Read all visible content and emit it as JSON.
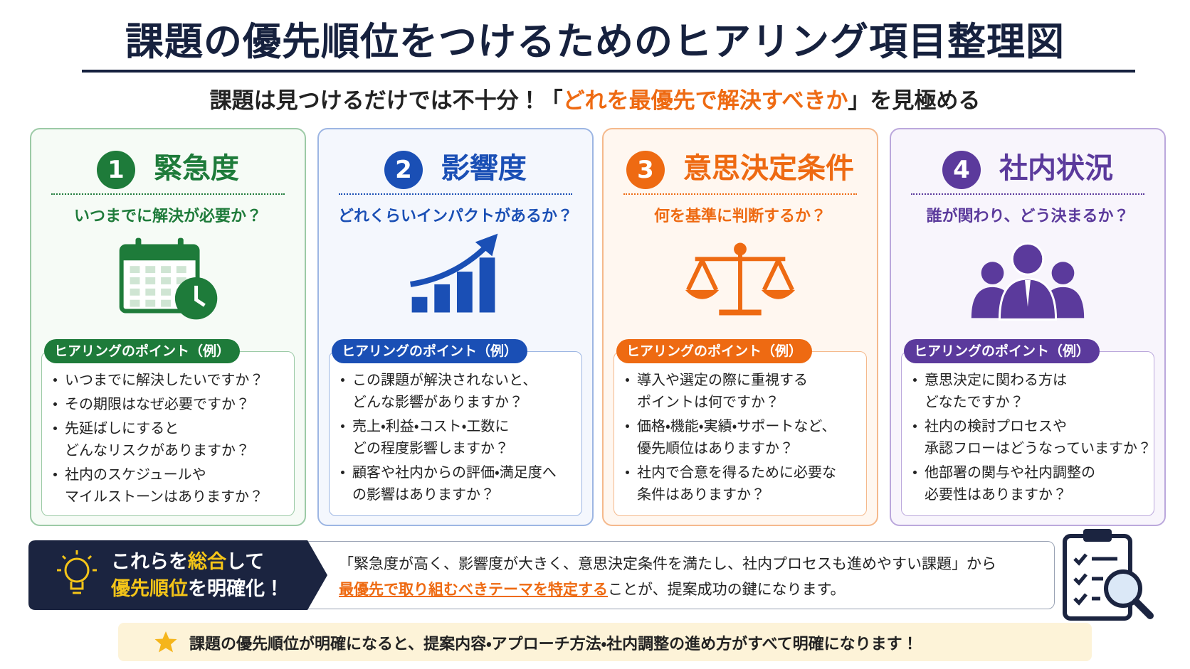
{
  "header": {
    "title": "課題の優先順位をつけるためのヒアリング項目整理図",
    "subtitle": [
      "課題は見つけるだけでは不十分！「",
      "どれを最優先で解決すべきか",
      "」を見極める"
    ]
  },
  "cards": [
    {
      "number": "1",
      "title": "緊急度",
      "question": "いつまでに解決が必要か？",
      "point_label": "ヒアリングのポイント（例）",
      "items": [
        [
          "いつまでに解決したいですか？"
        ],
        [
          "その期限はなぜ必要ですか？"
        ],
        [
          "先延ばしにすると",
          "どんなリスクがありますか？"
        ],
        [
          "社内のスケジュールや",
          "マイルストーンはありますか？"
        ]
      ]
    },
    {
      "number": "2",
      "title": "影響度",
      "question": "どれくらいインパクトがあるか？",
      "point_label": "ヒアリングのポイント（例）",
      "items": [
        [
          "この課題が解決されないと、",
          "どんな影響がありますか？"
        ],
        [
          "売上・利益・コスト・工数に",
          "どの程度影響しますか？"
        ],
        [
          "顧客や社内からの評価・満足度へ",
          "の影響はありますか？"
        ]
      ]
    },
    {
      "number": "3",
      "title": "意思決定条件",
      "question": "何を基準に判断するか？",
      "point_label": "ヒアリングのポイント（例）",
      "items": [
        [
          "導入や選定の際に重視する",
          "ポイントは何ですか？"
        ],
        [
          "価格・機能・実績・サポートなど、",
          "優先順位はありますか？"
        ],
        [
          "社内で合意を得るために必要な",
          "条件はありますか？"
        ]
      ]
    },
    {
      "number": "4",
      "title": "社内状況",
      "question": "誰が関わり、どう決まるか？",
      "point_label": "ヒアリングのポイント（例）",
      "items": [
        [
          "意思決定に関わる方は",
          "どなたですか？"
        ],
        [
          "社内の検討プロセスや",
          "承認フローはどうなっていますか？"
        ],
        [
          "他部署の関与や社内調整の",
          "必要性はありますか？"
        ]
      ]
    }
  ],
  "summary": {
    "heading": [
      [
        "これらを",
        "総合",
        "して"
      ],
      [
        "優先順位",
        "を明確化！"
      ]
    ],
    "body": [
      [
        "「緊急度が高く、影響度が大きく、意思決定条件を満たし、社内プロセスも進めやすい課題」から"
      ],
      [
        "最優先で取り組むべきテーマを特定する",
        "ことが、提案成功の鍵になります。"
      ]
    ]
  },
  "footer": {
    "note": "課題の優先順位が明確になると、提案内容・アプローチ方法・社内調整の進め方がすべて明確になります！"
  }
}
